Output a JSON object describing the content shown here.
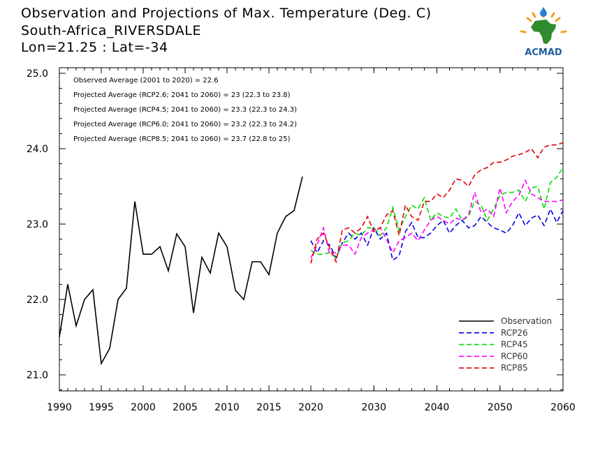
{
  "header": {
    "title": "Observation and Projections of Max. Temperature (Deg. C)",
    "location": "South-Africa_RIVERSDALE",
    "coords": "Lon=21.25 : Lat=-34"
  },
  "logo": {
    "text": "ACMAD",
    "icon": "africa-map-logo-icon",
    "colors": {
      "africa": "#2e8b2e",
      "rays": "#f0a020",
      "text": "#1f5fa0",
      "drop": "#2a7fd0"
    }
  },
  "chart_data": {
    "type": "line",
    "xlim": [
      1990,
      2060
    ],
    "ylim": [
      20.8,
      25.0
    ],
    "x_ticks": [
      1990,
      1995,
      2000,
      2005,
      2010,
      2015,
      2020,
      2030,
      2040,
      2050,
      2060
    ],
    "y_ticks": [
      21.0,
      22.0,
      23.0,
      24.0,
      25.0
    ],
    "y_tick_labels": [
      "21.0",
      "22.0",
      "23.0",
      "24.0",
      "25.0"
    ],
    "annotations": [
      "Observed Average (2001 to 2020) = 22.6",
      "Projected Average (RCP2.6; 2041 to 2060) = 23 (22.3 to 23.8)",
      "Projected Average (RCP4.5; 2041 to 2060) = 23.3 (22.3 to 24.3)",
      "Projected Average (RCP6.0; 2041 to 2060) = 23.2 (22.3 to 24.2)",
      "Projected Average (RCP8.5; 2041 to 2060) = 23.7 (22.8 to 25)"
    ],
    "legend_position": "bottom-right",
    "series": [
      {
        "name": "Observation",
        "color": "#000000",
        "dash": false,
        "x": [
          1990,
          1991,
          1992,
          1993,
          1994,
          1995,
          1996,
          1997,
          1998,
          1999,
          2000,
          2001,
          2002,
          2003,
          2004,
          2005,
          2006,
          2007,
          2008,
          2009,
          2010,
          2011,
          2012,
          2013,
          2014,
          2015,
          2016,
          2017,
          2018,
          2019,
          2020
        ],
        "y": [
          21.5,
          22.2,
          21.65,
          22.0,
          22.13,
          21.15,
          21.35,
          22.0,
          22.15,
          23.3,
          22.6,
          22.6,
          22.7,
          22.38,
          22.87,
          22.7,
          21.82,
          22.56,
          22.35,
          22.88,
          22.7,
          22.12,
          22.0,
          22.5,
          22.5,
          22.33,
          22.88,
          23.1,
          23.18,
          23.63,
          null
        ]
      },
      {
        "name": "RCP26",
        "color": "#0000e0",
        "dash": true,
        "x": [
          2020,
          2021,
          2022,
          2023,
          2024,
          2025,
          2026,
          2027,
          2028,
          2029,
          2030,
          2031,
          2032,
          2033,
          2034,
          2035,
          2036,
          2037,
          2038,
          2039,
          2040,
          2041,
          2042,
          2043,
          2044,
          2045,
          2046,
          2047,
          2048,
          2049,
          2050,
          2051,
          2052,
          2053,
          2054,
          2055,
          2056,
          2057,
          2058,
          2059,
          2060
        ],
        "y": [
          22.78,
          22.62,
          22.78,
          22.72,
          22.55,
          22.75,
          22.88,
          22.8,
          22.88,
          22.72,
          22.95,
          22.8,
          22.88,
          22.52,
          22.58,
          22.9,
          23.02,
          22.82,
          22.82,
          22.88,
          22.98,
          23.05,
          22.88,
          22.98,
          23.05,
          22.95,
          22.98,
          23.1,
          23.02,
          22.95,
          22.92,
          22.88,
          22.98,
          23.15,
          22.98,
          23.08,
          23.12,
          22.98,
          23.2,
          23.02,
          23.18
        ]
      },
      {
        "name": "RCP45",
        "color": "#00e000",
        "dash": true,
        "x": [
          2020,
          2021,
          2022,
          2023,
          2024,
          2025,
          2026,
          2027,
          2028,
          2029,
          2030,
          2031,
          2032,
          2033,
          2034,
          2035,
          2036,
          2037,
          2038,
          2039,
          2040,
          2041,
          2042,
          2043,
          2044,
          2045,
          2046,
          2047,
          2048,
          2049,
          2050,
          2051,
          2052,
          2053,
          2054,
          2055,
          2056,
          2057,
          2058,
          2059,
          2060
        ],
        "y": [
          22.65,
          22.6,
          22.6,
          22.62,
          22.55,
          22.75,
          22.78,
          22.88,
          22.85,
          22.95,
          22.95,
          22.85,
          22.95,
          23.22,
          22.92,
          23.1,
          23.25,
          23.2,
          23.35,
          23.05,
          23.15,
          23.1,
          23.08,
          23.2,
          23.05,
          23.1,
          23.3,
          23.25,
          23.05,
          23.2,
          23.38,
          23.42,
          23.42,
          23.45,
          23.3,
          23.48,
          23.5,
          23.2,
          23.55,
          23.62,
          23.75
        ]
      },
      {
        "name": "RCP60",
        "color": "#ff00ff",
        "dash": true,
        "x": [
          2020,
          2021,
          2022,
          2023,
          2024,
          2025,
          2026,
          2027,
          2028,
          2029,
          2030,
          2031,
          2032,
          2033,
          2034,
          2035,
          2036,
          2037,
          2038,
          2039,
          2040,
          2041,
          2042,
          2043,
          2044,
          2045,
          2046,
          2047,
          2048,
          2049,
          2050,
          2051,
          2052,
          2053,
          2054,
          2055,
          2056,
          2057,
          2058,
          2059,
          2060
        ],
        "y": [
          22.55,
          22.72,
          22.95,
          22.6,
          22.62,
          22.72,
          22.72,
          22.6,
          22.82,
          22.88,
          22.92,
          22.95,
          22.8,
          22.62,
          22.78,
          22.82,
          22.88,
          22.78,
          22.92,
          23.05,
          23.1,
          23.05,
          23.0,
          23.08,
          23.05,
          23.12,
          23.42,
          23.15,
          23.2,
          23.1,
          23.48,
          23.15,
          23.3,
          23.38,
          23.58,
          23.4,
          23.35,
          23.3,
          23.3,
          23.3,
          23.32
        ]
      },
      {
        "name": "RCP85",
        "color": "#e00000",
        "dash": true,
        "x": [
          2020,
          2021,
          2022,
          2023,
          2024,
          2025,
          2026,
          2027,
          2028,
          2029,
          2030,
          2031,
          2032,
          2033,
          2034,
          2035,
          2036,
          2037,
          2038,
          2039,
          2040,
          2041,
          2042,
          2043,
          2044,
          2045,
          2046,
          2047,
          2048,
          2049,
          2050,
          2051,
          2052,
          2053,
          2054,
          2055,
          2056,
          2057,
          2058,
          2059,
          2060
        ],
        "y": [
          22.48,
          22.8,
          22.88,
          22.68,
          22.5,
          22.92,
          22.95,
          22.88,
          22.95,
          23.1,
          22.9,
          22.95,
          23.12,
          23.18,
          22.85,
          23.25,
          23.1,
          23.05,
          23.3,
          23.3,
          23.4,
          23.35,
          23.45,
          23.6,
          23.58,
          23.5,
          23.65,
          23.72,
          23.75,
          23.82,
          23.82,
          23.85,
          23.9,
          23.92,
          23.95,
          24.0,
          23.88,
          24.02,
          24.05,
          24.05,
          24.08
        ]
      }
    ]
  }
}
